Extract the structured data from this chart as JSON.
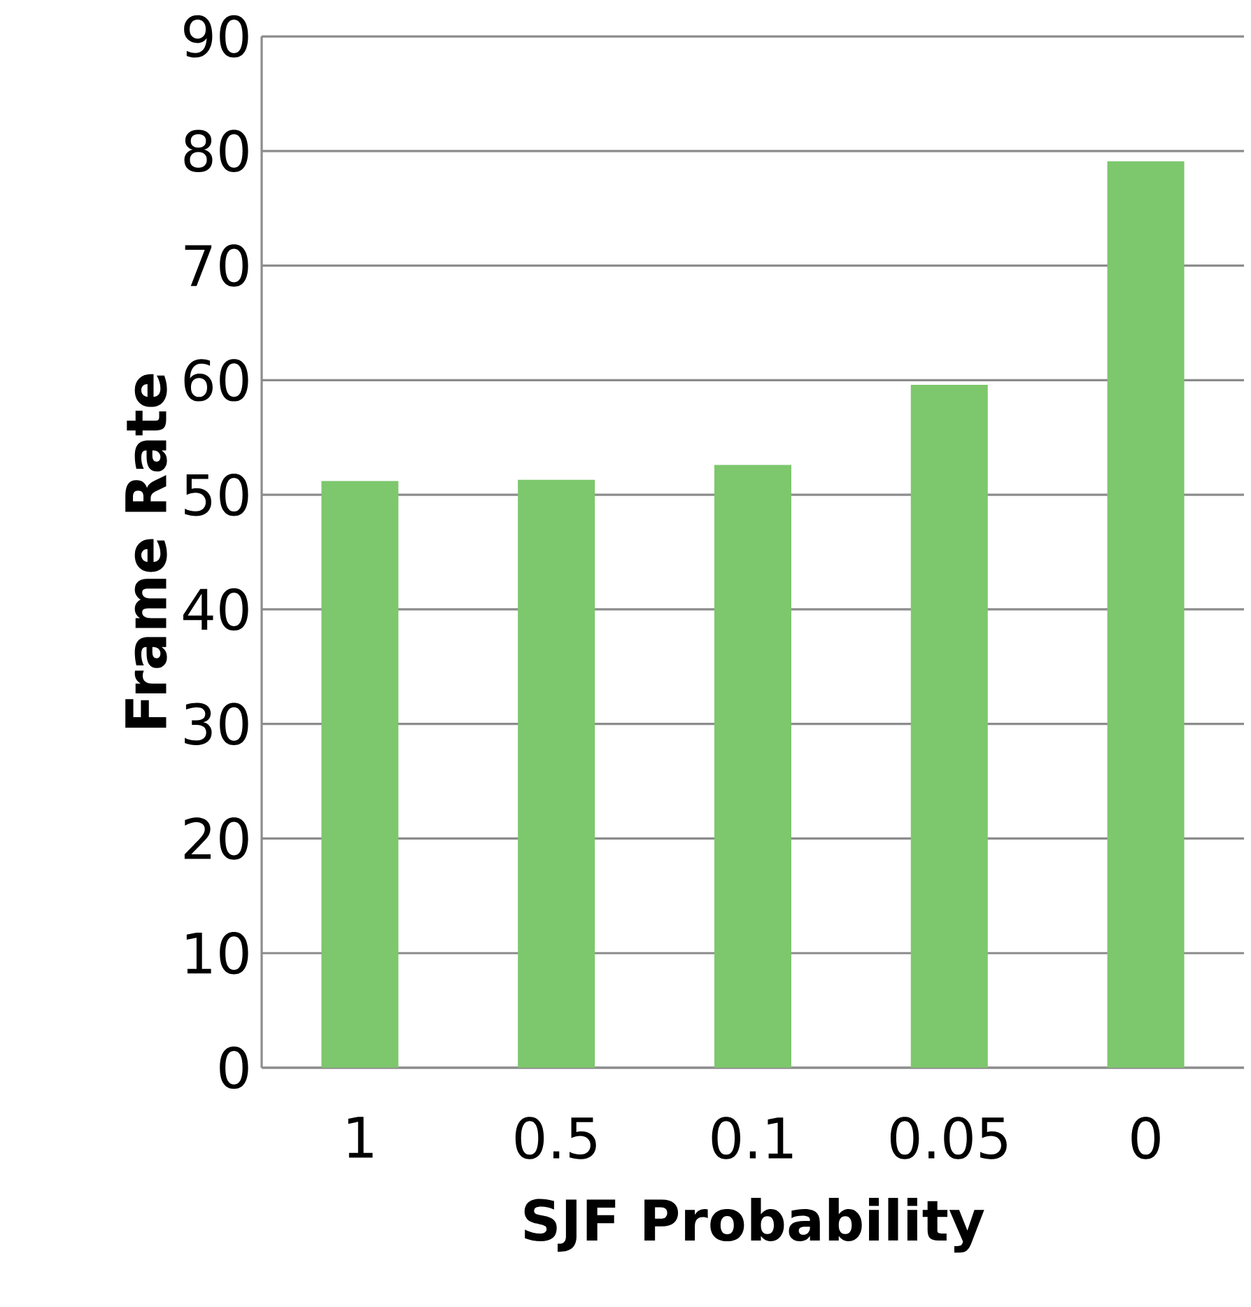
{
  "chart_data": {
    "type": "bar",
    "xlabel": "SJF Probability",
    "ylabel": "Frame Rate",
    "categories": [
      "1",
      "0.5",
      "0.1",
      "0.05",
      "0"
    ],
    "values": [
      51.2,
      51.3,
      52.6,
      59.6,
      79.1
    ],
    "color": "#7dc76d",
    "ylim": [
      0,
      90
    ],
    "yticks": [
      0,
      10,
      20,
      30,
      40,
      50,
      60,
      70,
      80,
      90
    ],
    "grid": "y"
  }
}
